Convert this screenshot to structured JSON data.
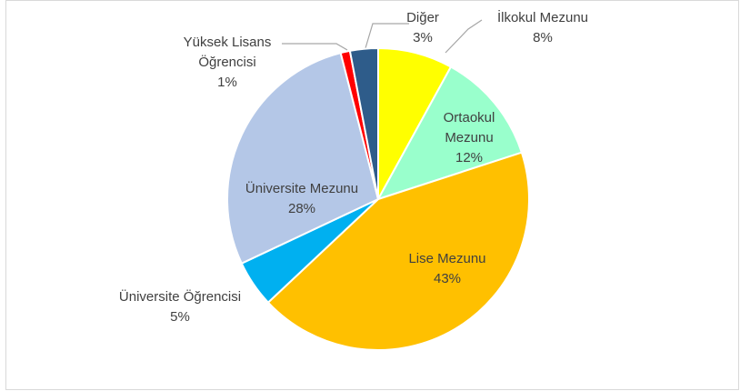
{
  "chart_data": {
    "type": "pie",
    "categories": [
      "İlkokul Mezunu",
      "Ortaokul Mezunu",
      "Lise Mezunu",
      "Üniversite Öğrencisi",
      "Üniversite Mezunu",
      "Yüksek Lisans Öğrencisi",
      "Diğer"
    ],
    "values": [
      8,
      12,
      43,
      5,
      28,
      1,
      3
    ],
    "value_labels": [
      "8%",
      "12%",
      "43%",
      "5%",
      "28%",
      "1%",
      "3%"
    ],
    "colors": [
      "#ffff00",
      "#99ffcc",
      "#ffc000",
      "#00b0f0",
      "#b4c7e7",
      "#ff0000",
      "#2e5c8a"
    ]
  }
}
